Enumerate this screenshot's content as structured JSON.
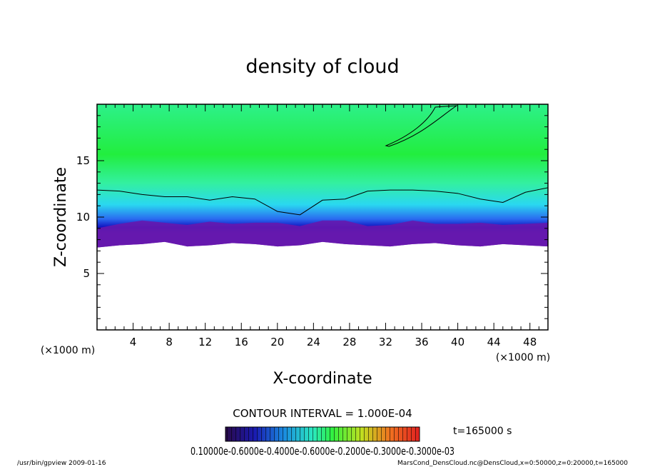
{
  "chart_data": {
    "type": "heatmap",
    "title": "density of cloud",
    "xlabel": "X-coordinate",
    "ylabel": "Z-coordinate",
    "x_unit": "(×1000 m)",
    "y_unit": "(×1000 m)",
    "xlim": [
      0,
      50
    ],
    "ylim": [
      0,
      20
    ],
    "x_ticks": [
      4,
      8,
      12,
      16,
      20,
      24,
      28,
      32,
      36,
      40,
      44,
      48
    ],
    "y_ticks": [
      5,
      10,
      15
    ],
    "grid": false,
    "contour_interval_text": "CONTOUR INTERVAL = 1.000E-04",
    "time_label": "t=165000 s",
    "colorbar": {
      "min": 0.0001,
      "max": 0.0007,
      "labels_text": "0.10000e-0.6000e-0.4000e-0.6000e-0.2000e-0.3000e-0.3000e-03"
    },
    "cloud_region": {
      "bottom_z": [
        7.3,
        7.5,
        7.6,
        7.8,
        7.4,
        7.5,
        7.7,
        7.6,
        7.4,
        7.5,
        7.8,
        7.6,
        7.5,
        7.4,
        7.6,
        7.7,
        7.5,
        7.4,
        7.6,
        7.5,
        7.4
      ],
      "x": [
        0,
        2.5,
        5,
        7.5,
        10,
        12.5,
        15,
        17.5,
        20,
        22.5,
        25,
        27.5,
        30,
        32.5,
        35,
        37.5,
        40,
        42.5,
        45,
        47.5,
        50
      ],
      "top_z": 20
    },
    "contour_line_z": [
      12.4,
      12.3,
      12.0,
      11.8,
      11.8,
      11.5,
      11.8,
      11.6,
      10.5,
      10.2,
      11.5,
      11.6,
      12.3,
      12.4,
      12.4,
      12.3,
      12.1,
      11.6,
      11.3,
      12.2,
      12.6
    ]
  },
  "footer": {
    "left": "/usr/bin/gpview   2009-01-16",
    "right": "MarsCond_DensCloud.nc@DensCloud,x=0:50000,z=0:20000,t=165000"
  }
}
